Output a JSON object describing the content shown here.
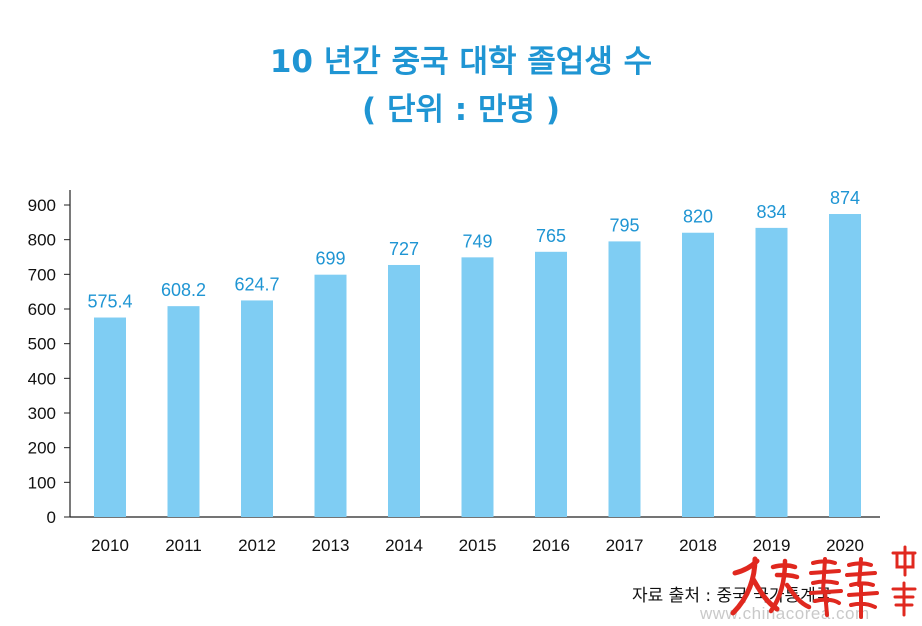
{
  "title_line1": "10 년간 중국 대학 졸업생 수",
  "title_line2": "( 단위 : 만명 )",
  "source": "자료 출처 : 중국 국가통계국",
  "watermark": {
    "url": "www.chinacorea.com",
    "logo_text": "人民画报",
    "logo_text_2": "中韩"
  },
  "colors": {
    "bar": "#7fcdf3",
    "label": "#1f95d3",
    "title": "#1f95d3"
  },
  "chart_data": {
    "type": "bar",
    "categories": [
      "2010",
      "2011",
      "2012",
      "2013",
      "2014",
      "2015",
      "2016",
      "2017",
      "2018",
      "2019",
      "2020"
    ],
    "values": [
      575.4,
      608.2,
      624.7,
      699,
      727,
      749,
      765,
      795,
      820,
      834,
      874
    ],
    "value_labels": [
      "575.4",
      "608.2",
      "624.7",
      "699",
      "727",
      "749",
      "765",
      "795",
      "820",
      "834",
      "874"
    ],
    "ylim": [
      0,
      900
    ],
    "yticks": [
      0,
      100,
      200,
      300,
      400,
      500,
      600,
      700,
      800,
      900
    ],
    "title": "10 년간 중국 대학 졸업생 수",
    "subtitle": "( 단위 : 만명 )",
    "xlabel": "",
    "ylabel": "",
    "grid": false,
    "legend": "none"
  }
}
